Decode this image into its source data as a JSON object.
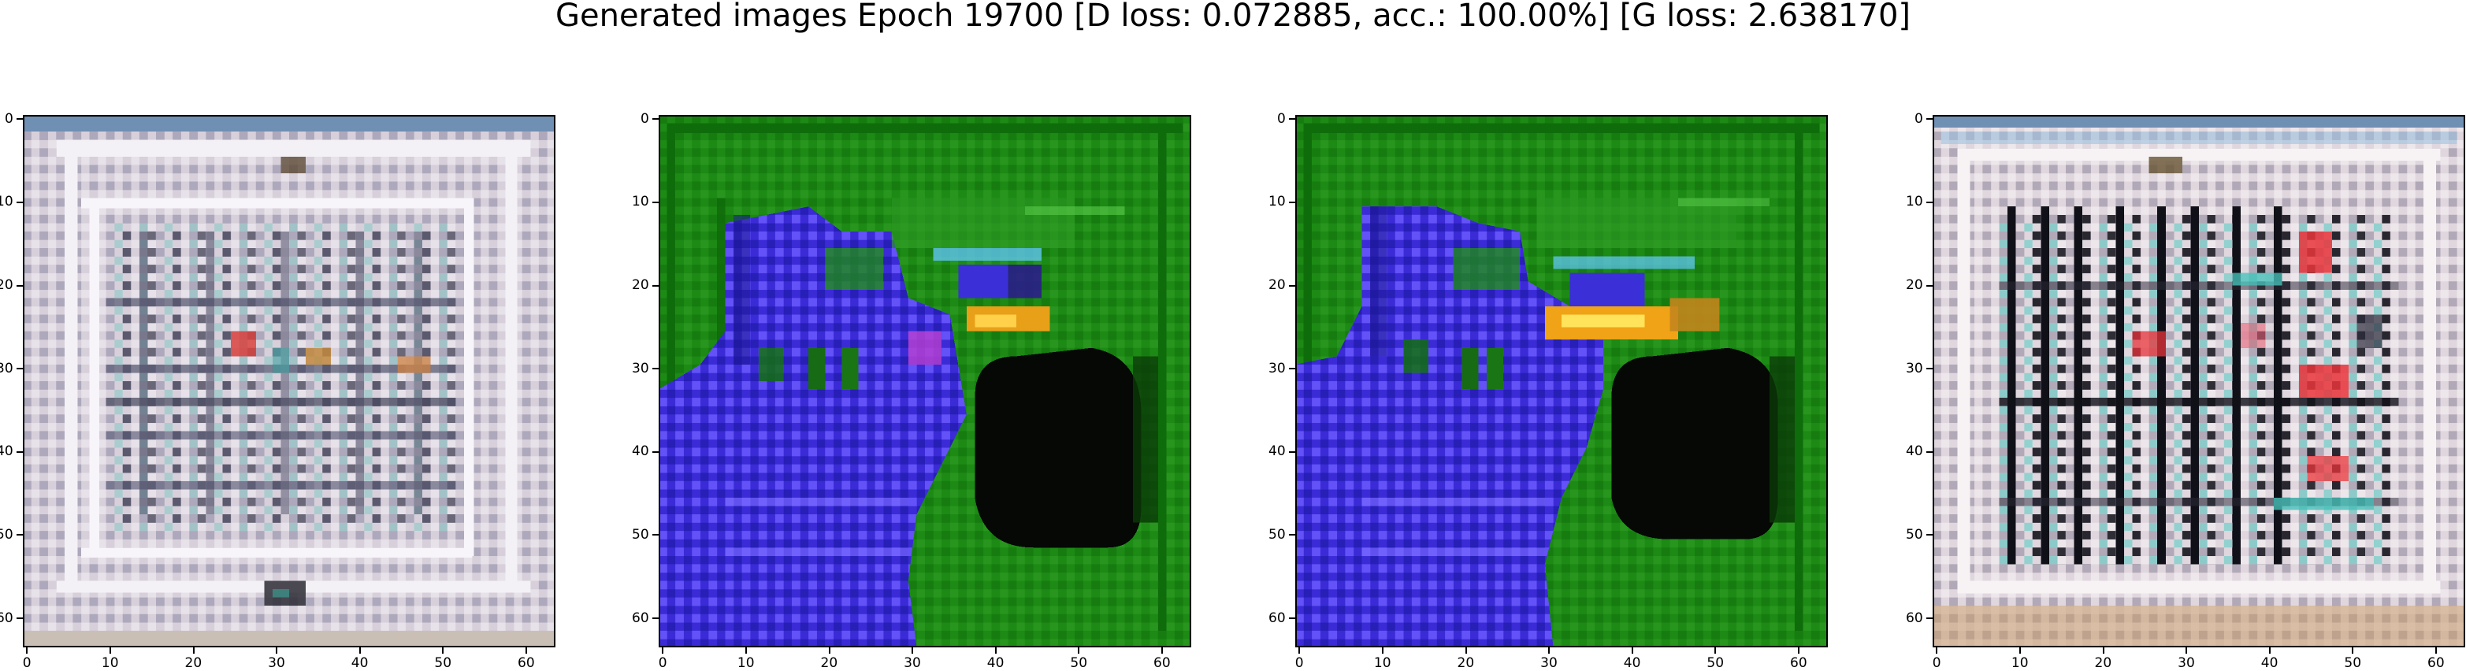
{
  "figure": {
    "suptitle": "Generated images Epoch 19700 [D loss: 0.072885, acc.: 100.00%] [G loss: 2.638170]"
  },
  "axes": {
    "xticks": [
      "0",
      "10",
      "20",
      "30",
      "40",
      "50",
      "60"
    ],
    "yticks": [
      "0",
      "10",
      "20",
      "30",
      "40",
      "50",
      "60"
    ],
    "xlim": [
      -0.5,
      63.5
    ],
    "ylim": [
      63.5,
      -0.5
    ]
  },
  "panels": [
    {
      "id": "sample-1",
      "description_colors": {
        "background": "#d9d2dc",
        "frame": "#f4f2f6",
        "grid": "#3d3f52",
        "accents": [
          "#d8423d",
          "#c2893e",
          "#4ea6a8"
        ]
      }
    },
    {
      "id": "sample-2",
      "description_colors": {
        "background": "#1c8a14",
        "blob": "#3a2bd6",
        "dark": "#050805",
        "accents": [
          "#e8a018",
          "#63c7ff",
          "#b33fd1"
        ]
      }
    },
    {
      "id": "sample-3",
      "description_colors": {
        "background": "#1c8a14",
        "blob": "#3a2bd6",
        "dark": "#050805",
        "accents": [
          "#f0a316",
          "#ffe35a",
          "#63c7ff"
        ]
      }
    },
    {
      "id": "sample-4",
      "description_colors": {
        "background": "#e2d9e0",
        "frame": "#f7f3f5",
        "grid": "#101018",
        "accents": [
          "#e8343a",
          "#46bfb8",
          "#c99c6c"
        ]
      }
    }
  ]
}
